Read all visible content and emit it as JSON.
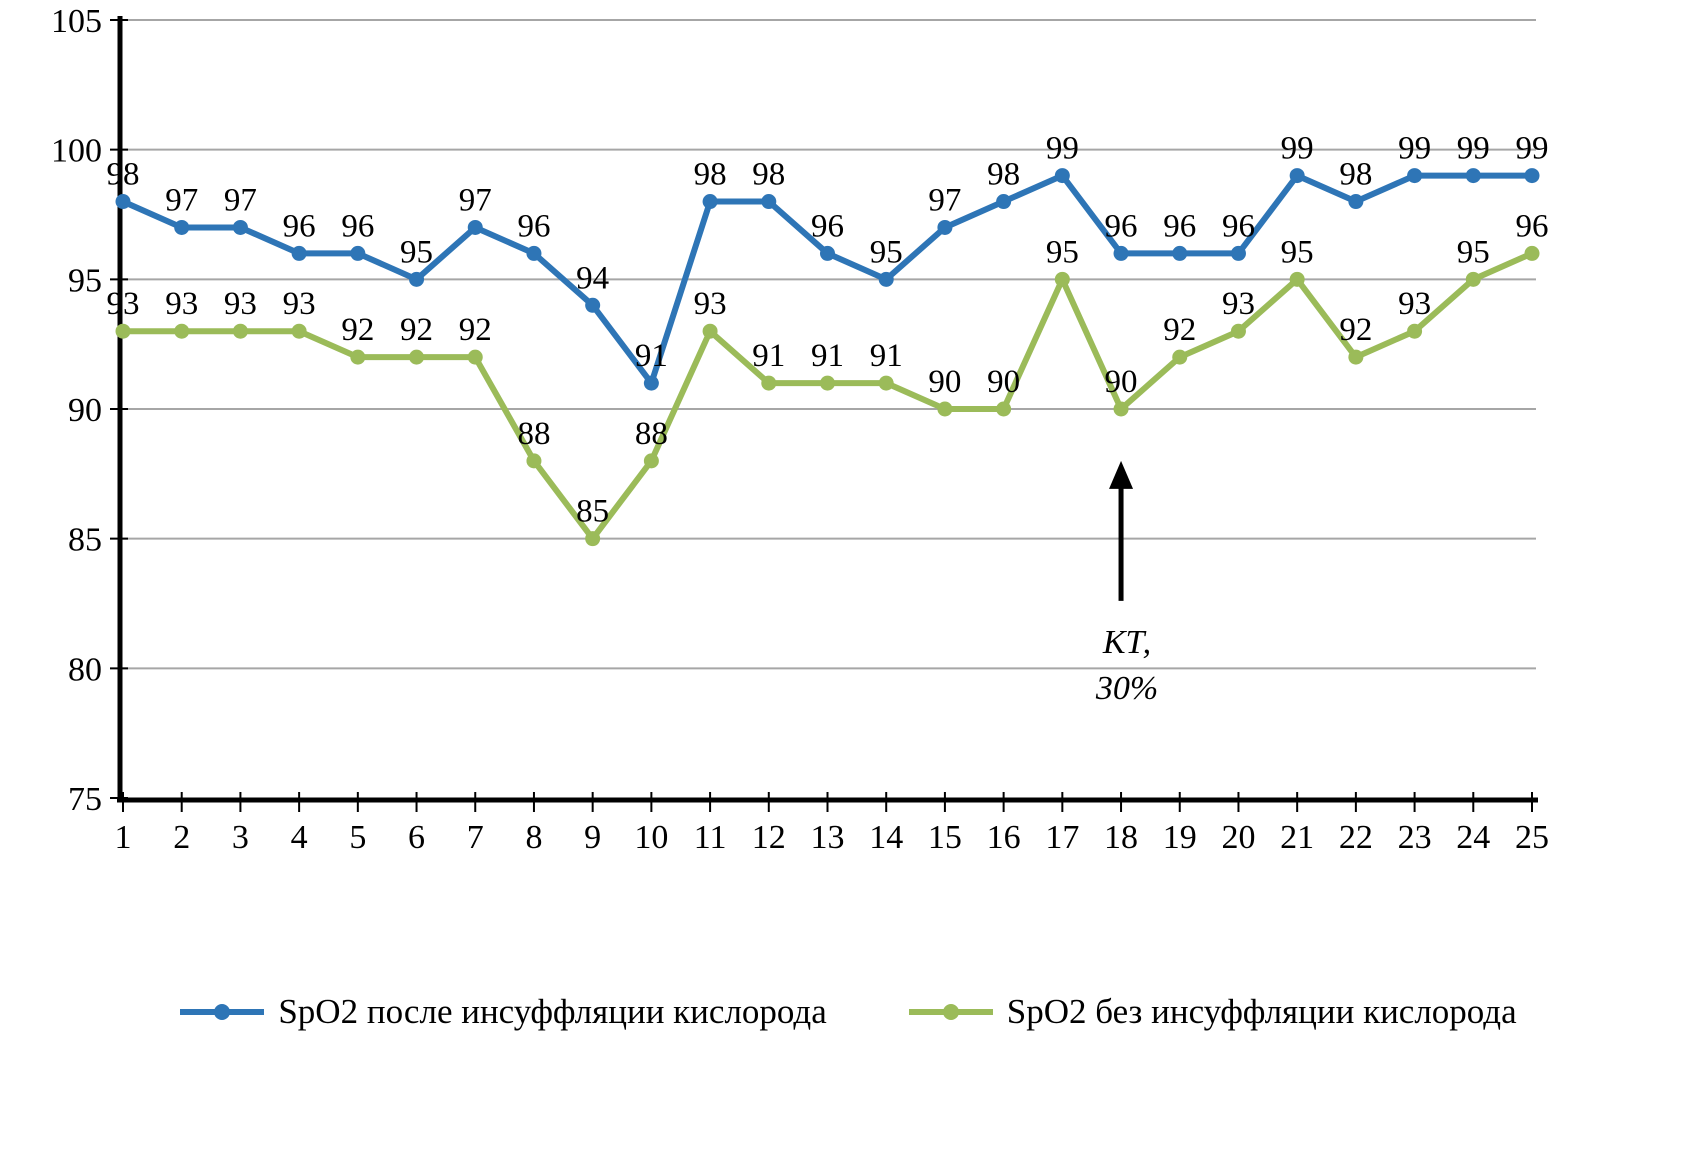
{
  "chart_data": {
    "type": "line",
    "x": [
      1,
      2,
      3,
      4,
      5,
      6,
      7,
      8,
      9,
      10,
      11,
      12,
      13,
      14,
      15,
      16,
      17,
      18,
      19,
      20,
      21,
      22,
      23,
      24,
      25
    ],
    "series": [
      {
        "name": "SpO2 после инсуффляции кислорода",
        "color": "#2E75B6",
        "values": [
          98,
          97,
          97,
          96,
          96,
          95,
          97,
          96,
          94,
          91,
          98,
          98,
          96,
          95,
          97,
          98,
          99,
          96,
          96,
          96,
          99,
          98,
          99,
          99,
          99
        ]
      },
      {
        "name": "SpO2 без инсуффляции кислорода",
        "color": "#9BBB59",
        "values": [
          93,
          93,
          93,
          93,
          92,
          92,
          92,
          88,
          85,
          88,
          93,
          91,
          91,
          91,
          90,
          90,
          95,
          90,
          92,
          93,
          95,
          92,
          93,
          95,
          96
        ]
      }
    ],
    "title": "",
    "xlabel": "",
    "ylabel": "",
    "ylim": [
      75,
      105
    ],
    "yticks": [
      75,
      80,
      85,
      90,
      95,
      100,
      105
    ],
    "grid": true,
    "gridline_color": "#A6A6A6",
    "axis_color": "#000000",
    "data_label_color": "#000000",
    "legend_position": "bottom",
    "annotation": {
      "lines": [
        "КТ,",
        "30%"
      ],
      "x": 18,
      "arrow_from_value": 82.6,
      "arrow_to_value": 88.0,
      "color": "#000000"
    }
  }
}
